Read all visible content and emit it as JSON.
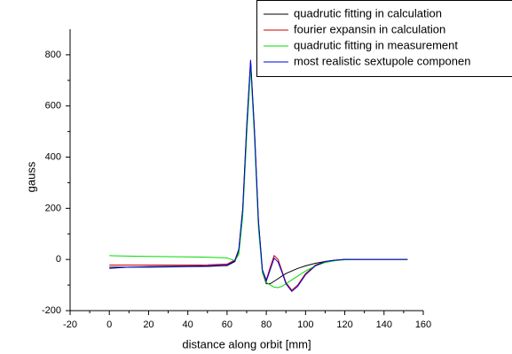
{
  "chart_data": {
    "type": "line",
    "xlabel": "distance along orbit [mm]",
    "ylabel": "gauss",
    "x": [
      0,
      10,
      20,
      30,
      40,
      50,
      60,
      64,
      66,
      68,
      70,
      72,
      74,
      76,
      78,
      80,
      82,
      84,
      86,
      88,
      90,
      93,
      96,
      100,
      105,
      110,
      115,
      120,
      130,
      140,
      152
    ],
    "series": [
      {
        "name": "quadrutic fitting in calculation",
        "color": "#000000",
        "values": [
          -30,
          -30,
          -30,
          -29,
          -28,
          -27,
          -24,
          -8,
          35,
          190,
          500,
          770,
          490,
          140,
          -50,
          -95,
          -95,
          -85,
          -75,
          -65,
          -55,
          -45,
          -35,
          -25,
          -15,
          -8,
          -3,
          0,
          0,
          0,
          0
        ]
      },
      {
        "name": "fourier expansin in calculation",
        "color": "#cc0000",
        "values": [
          -22,
          -22,
          -22,
          -22,
          -22,
          -21,
          -18,
          -2,
          40,
          200,
          520,
          775,
          500,
          150,
          -40,
          -80,
          -30,
          15,
          0,
          -45,
          -90,
          -120,
          -100,
          -55,
          -22,
          -8,
          -3,
          0,
          0,
          0,
          0
        ]
      },
      {
        "name": "quadrutic fitting in measurement",
        "color": "#00dd00",
        "values": [
          15,
          13,
          12,
          11,
          10,
          9,
          6,
          -5,
          20,
          170,
          480,
          750,
          470,
          120,
          -50,
          -90,
          -100,
          -108,
          -110,
          -105,
          -95,
          -80,
          -65,
          -45,
          -25,
          -12,
          -5,
          -1,
          0,
          0,
          0
        ]
      },
      {
        "name": "most realistic sextupole componen",
        "color": "#0000dd",
        "values": [
          -35,
          -30,
          -28,
          -27,
          -26,
          -25,
          -22,
          -5,
          40,
          200,
          520,
          780,
          500,
          150,
          -40,
          -85,
          -40,
          5,
          -10,
          -50,
          -95,
          -125,
          -105,
          -60,
          -25,
          -8,
          -3,
          0,
          0,
          0,
          0
        ]
      }
    ],
    "xlim": [
      -20,
      160
    ],
    "xticks": [
      -20,
      0,
      20,
      40,
      60,
      80,
      100,
      120,
      140,
      160
    ],
    "ylim": [
      -200,
      900
    ],
    "yticks": [
      -200,
      0,
      200,
      400,
      600,
      800
    ],
    "legend": "top-right"
  }
}
